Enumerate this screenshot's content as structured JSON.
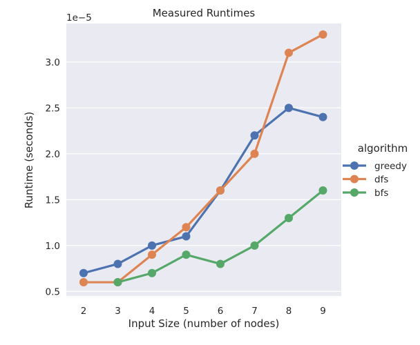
{
  "chart_data": {
    "type": "line",
    "title": "Measured Runtimes",
    "xlabel": "Input Size (number of nodes)",
    "ylabel": "Runtime (seconds)",
    "y_offset_label": "1e−5",
    "categories": [
      "2",
      "3",
      "4",
      "5",
      "6",
      "7",
      "8",
      "9"
    ],
    "ylim": [
      0.45,
      3.42
    ],
    "yticks": [
      0.5,
      1.0,
      1.5,
      2.0,
      2.5,
      3.0
    ],
    "ytick_labels": [
      "0.5",
      "1.0",
      "1.5",
      "2.0",
      "2.5",
      "3.0"
    ],
    "grid": true,
    "legend": {
      "title": "algorithm",
      "placement": "right"
    },
    "series": [
      {
        "name": "greedy",
        "color": "#4c72b0",
        "values": [
          0.7,
          0.8,
          1.0,
          1.1,
          1.6,
          2.2,
          2.5,
          2.4
        ]
      },
      {
        "name": "dfs",
        "color": "#dd8452",
        "values": [
          0.6,
          0.6,
          0.9,
          1.2,
          1.6,
          2.0,
          3.1,
          3.3
        ]
      },
      {
        "name": "bfs",
        "color": "#55a868",
        "values": [
          null,
          0.6,
          0.7,
          0.9,
          0.8,
          1.0,
          1.3,
          1.6
        ]
      }
    ]
  }
}
